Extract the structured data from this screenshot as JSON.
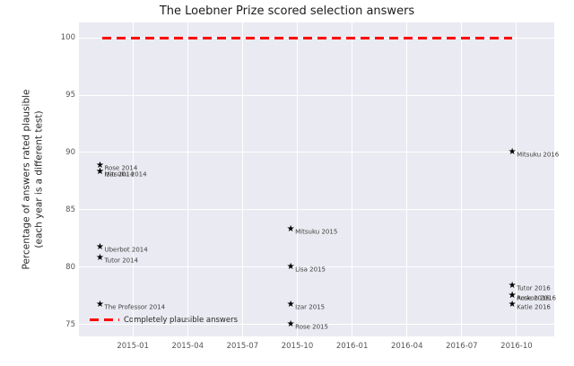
{
  "chart_data": {
    "type": "scatter",
    "title": "The Loebner Prize scored selection answers",
    "ylabel_line1": "Percentage of answers rated plausible",
    "ylabel_line2": "(each year is a different test)",
    "xlabel": "",
    "xlim": [
      2014.754,
      2016.922
    ],
    "ylim": [
      73.95,
      101.35
    ],
    "grid": true,
    "plot_background": "#eaeaf2",
    "marker": "star",
    "marker_color": "#000000",
    "x_ticks": [
      {
        "v": 2015.0,
        "label": "2015-01"
      },
      {
        "v": 2015.25,
        "label": "2015-04"
      },
      {
        "v": 2015.5,
        "label": "2015-07"
      },
      {
        "v": 2015.75,
        "label": "2015-10"
      },
      {
        "v": 2016.0,
        "label": "2016-01"
      },
      {
        "v": 2016.25,
        "label": "2016-04"
      },
      {
        "v": 2016.5,
        "label": "2016-07"
      },
      {
        "v": 2016.75,
        "label": "2016-10"
      }
    ],
    "y_ticks": [
      75,
      80,
      85,
      90,
      95,
      100
    ],
    "reference_line": {
      "y": 100,
      "x_start": 2014.86,
      "x_end": 2016.73,
      "color": "#ff0000",
      "style": "dashed"
    },
    "legend": {
      "label": "Completely plausible answers",
      "position": "lower left"
    },
    "points": [
      {
        "name": "Rose 2014",
        "x": 2014.85,
        "y": 88.8
      },
      {
        "name": "Mitsuku 2014",
        "x": 2014.85,
        "y": 88.3
      },
      {
        "name": "Izar 2014",
        "x": 2014.85,
        "y": 88.3
      },
      {
        "name": "Uberbot 2014",
        "x": 2014.85,
        "y": 81.7
      },
      {
        "name": "Tutor 2014",
        "x": 2014.85,
        "y": 80.8
      },
      {
        "name": "The Professor 2014",
        "x": 2014.85,
        "y": 76.7
      },
      {
        "name": "Mitsuku 2015",
        "x": 2015.72,
        "y": 83.3
      },
      {
        "name": "Lisa 2015",
        "x": 2015.72,
        "y": 80.0
      },
      {
        "name": "Izar 2015",
        "x": 2015.72,
        "y": 76.7
      },
      {
        "name": "Rose 2015",
        "x": 2015.72,
        "y": 75.0
      },
      {
        "name": "Mitsuku 2016",
        "x": 2016.73,
        "y": 90.0
      },
      {
        "name": "Tutor 2016",
        "x": 2016.73,
        "y": 78.3
      },
      {
        "name": "Rose 2016",
        "x": 2016.73,
        "y": 77.5
      },
      {
        "name": "Arckon 2016",
        "x": 2016.73,
        "y": 77.5
      },
      {
        "name": "Katie 2016",
        "x": 2016.73,
        "y": 76.7
      }
    ]
  }
}
